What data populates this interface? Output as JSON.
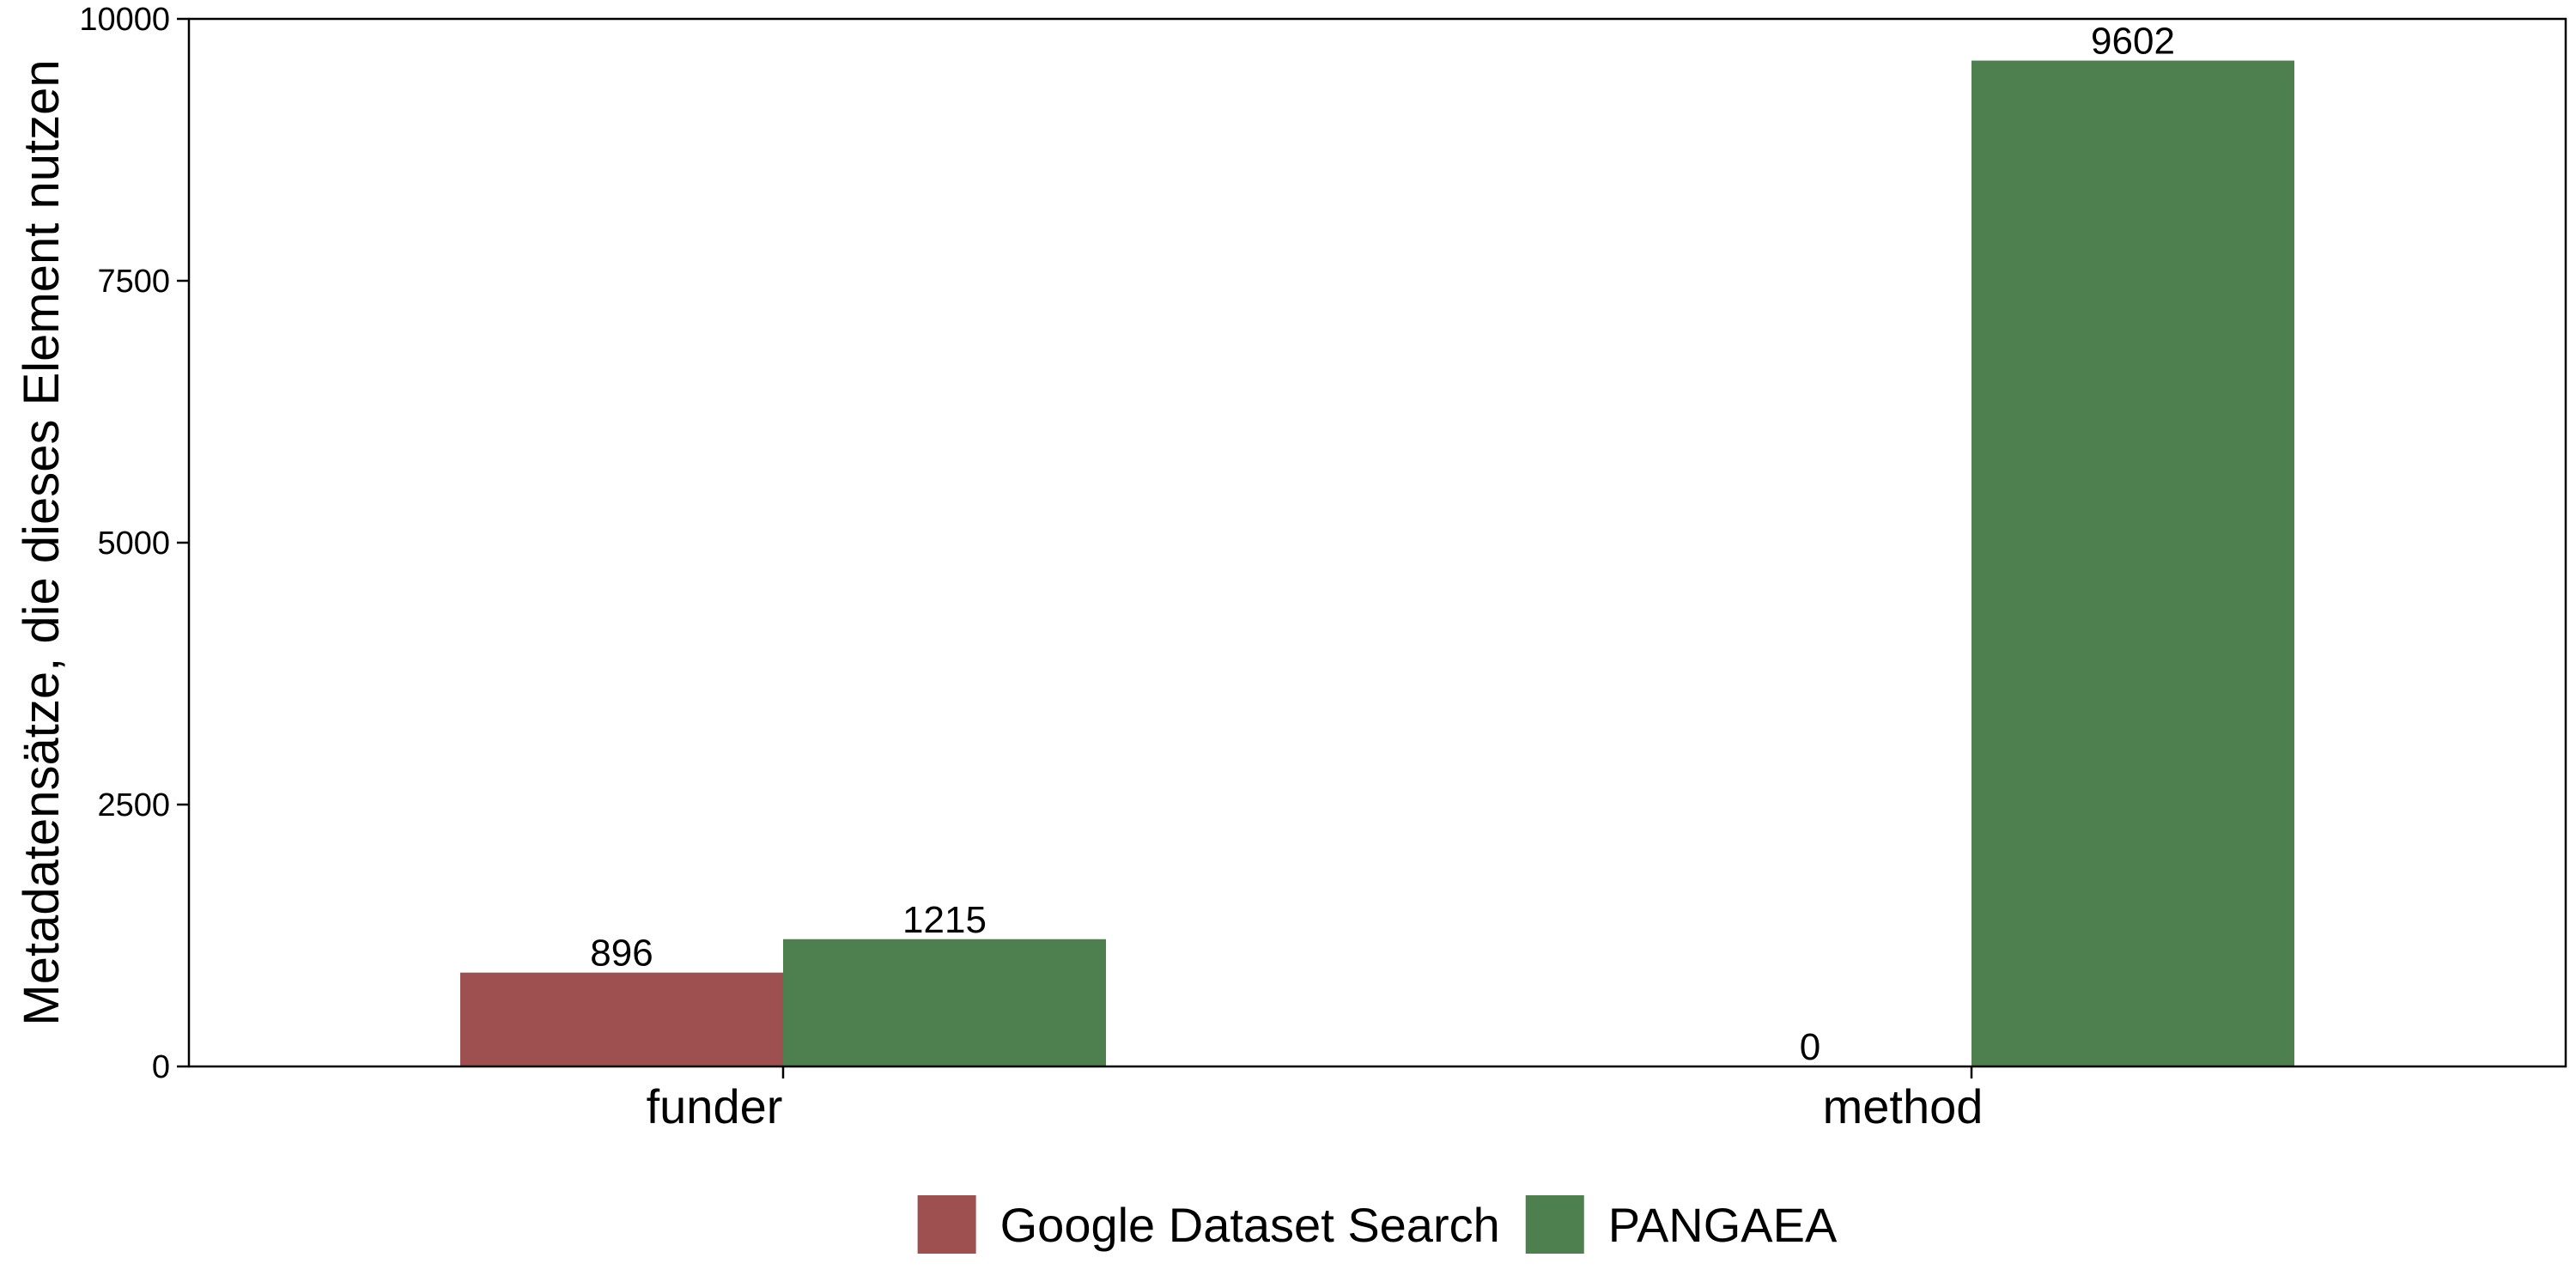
{
  "chart_data": {
    "type": "bar",
    "categories": [
      "funder",
      "method"
    ],
    "series": [
      {
        "name": "Google Dataset Search",
        "color": "#9e4f4f",
        "values": [
          896,
          0
        ]
      },
      {
        "name": "PANGAEA",
        "color": "#4e7f4e",
        "values": [
          1215,
          9602
        ]
      }
    ],
    "ylabel": "Metadatensätze, die dieses Element nutzen",
    "xlabel": "",
    "ylim": [
      0,
      10000
    ],
    "yticks": [
      0,
      2500,
      5000,
      7500,
      10000
    ],
    "grid": false,
    "legend_position": "bottom"
  }
}
